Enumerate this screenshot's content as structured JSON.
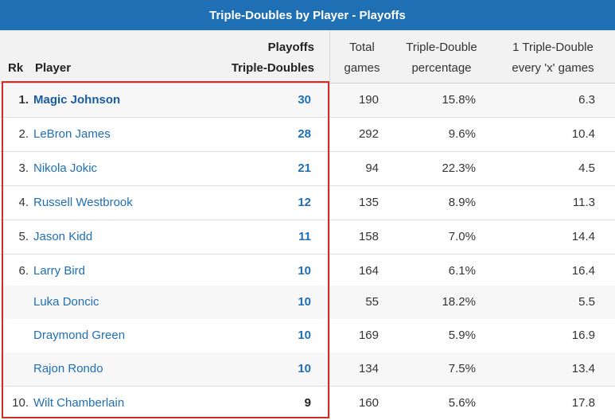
{
  "title": "Triple-Doubles by Player - Playoffs",
  "headers": {
    "rank": "Rk",
    "player": "Player",
    "td_line1": "Playoffs",
    "td_line2": "Triple-Doubles",
    "games_line1": "Total",
    "games_line2": "games",
    "pct_line1": "Triple-Double",
    "pct_line2": "percentage",
    "every_line1": "1 Triple-Double",
    "every_line2": "every 'x' games"
  },
  "rows": [
    {
      "rank": "1.",
      "player": "Magic Johnson",
      "td": "30",
      "games": "190",
      "pct": "15.8%",
      "every": "6.3"
    },
    {
      "rank": "2.",
      "player": "LeBron James",
      "td": "28",
      "games": "292",
      "pct": "9.6%",
      "every": "10.4"
    },
    {
      "rank": "3.",
      "player": "Nikola Jokic",
      "td": "21",
      "games": "94",
      "pct": "22.3%",
      "every": "4.5"
    },
    {
      "rank": "4.",
      "player": "Russell Westbrook",
      "td": "12",
      "games": "135",
      "pct": "8.9%",
      "every": "11.3"
    },
    {
      "rank": "5.",
      "player": "Jason Kidd",
      "td": "11",
      "games": "158",
      "pct": "7.0%",
      "every": "14.4"
    },
    {
      "rank": "6.",
      "player": "Larry Bird",
      "td": "10",
      "games": "164",
      "pct": "6.1%",
      "every": "16.4"
    },
    {
      "rank": "",
      "player": "Luka Doncic",
      "td": "10",
      "games": "55",
      "pct": "18.2%",
      "every": "5.5"
    },
    {
      "rank": "",
      "player": "Draymond Green",
      "td": "10",
      "games": "169",
      "pct": "5.9%",
      "every": "16.9"
    },
    {
      "rank": "",
      "player": "Rajon Rondo",
      "td": "10",
      "games": "134",
      "pct": "7.5%",
      "every": "13.4"
    },
    {
      "rank": "10.",
      "player": "Wilt Chamberlain",
      "td": "9",
      "games": "160",
      "pct": "5.6%",
      "every": "17.8"
    }
  ],
  "colors": {
    "title_bg": "#1f6fb5",
    "link": "#1f6fb5",
    "highlight": "#d12b2b"
  }
}
